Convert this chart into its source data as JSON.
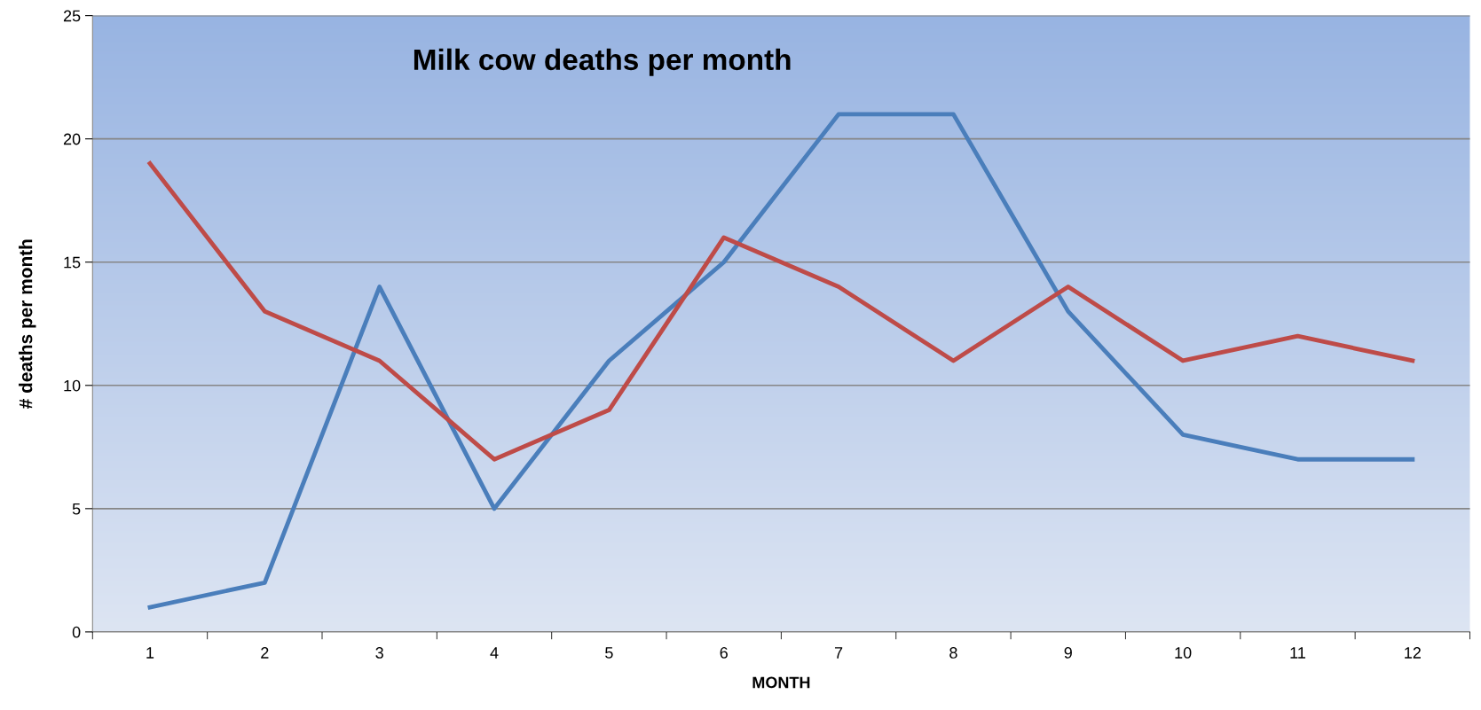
{
  "chart_data": {
    "type": "line",
    "title": "Milk cow deaths per month",
    "xlabel": "MONTH",
    "ylabel": "# deaths per month",
    "categories": [
      "1",
      "2",
      "3",
      "4",
      "5",
      "6",
      "7",
      "8",
      "9",
      "10",
      "11",
      "12"
    ],
    "series": [
      {
        "color": "#4a7ebb",
        "values": [
          1,
          2,
          14,
          5,
          11,
          15,
          21,
          21,
          13,
          8,
          7,
          7
        ]
      },
      {
        "color": "#be4b48",
        "values": [
          19,
          13,
          11,
          7,
          9,
          16,
          14,
          11,
          14,
          11,
          12,
          11
        ]
      }
    ],
    "ylim": [
      0,
      25
    ],
    "yticks": [
      0,
      5,
      10,
      15,
      20,
      25
    ],
    "grid": "y",
    "legend": false,
    "marker": "none",
    "line_style": "solid"
  }
}
